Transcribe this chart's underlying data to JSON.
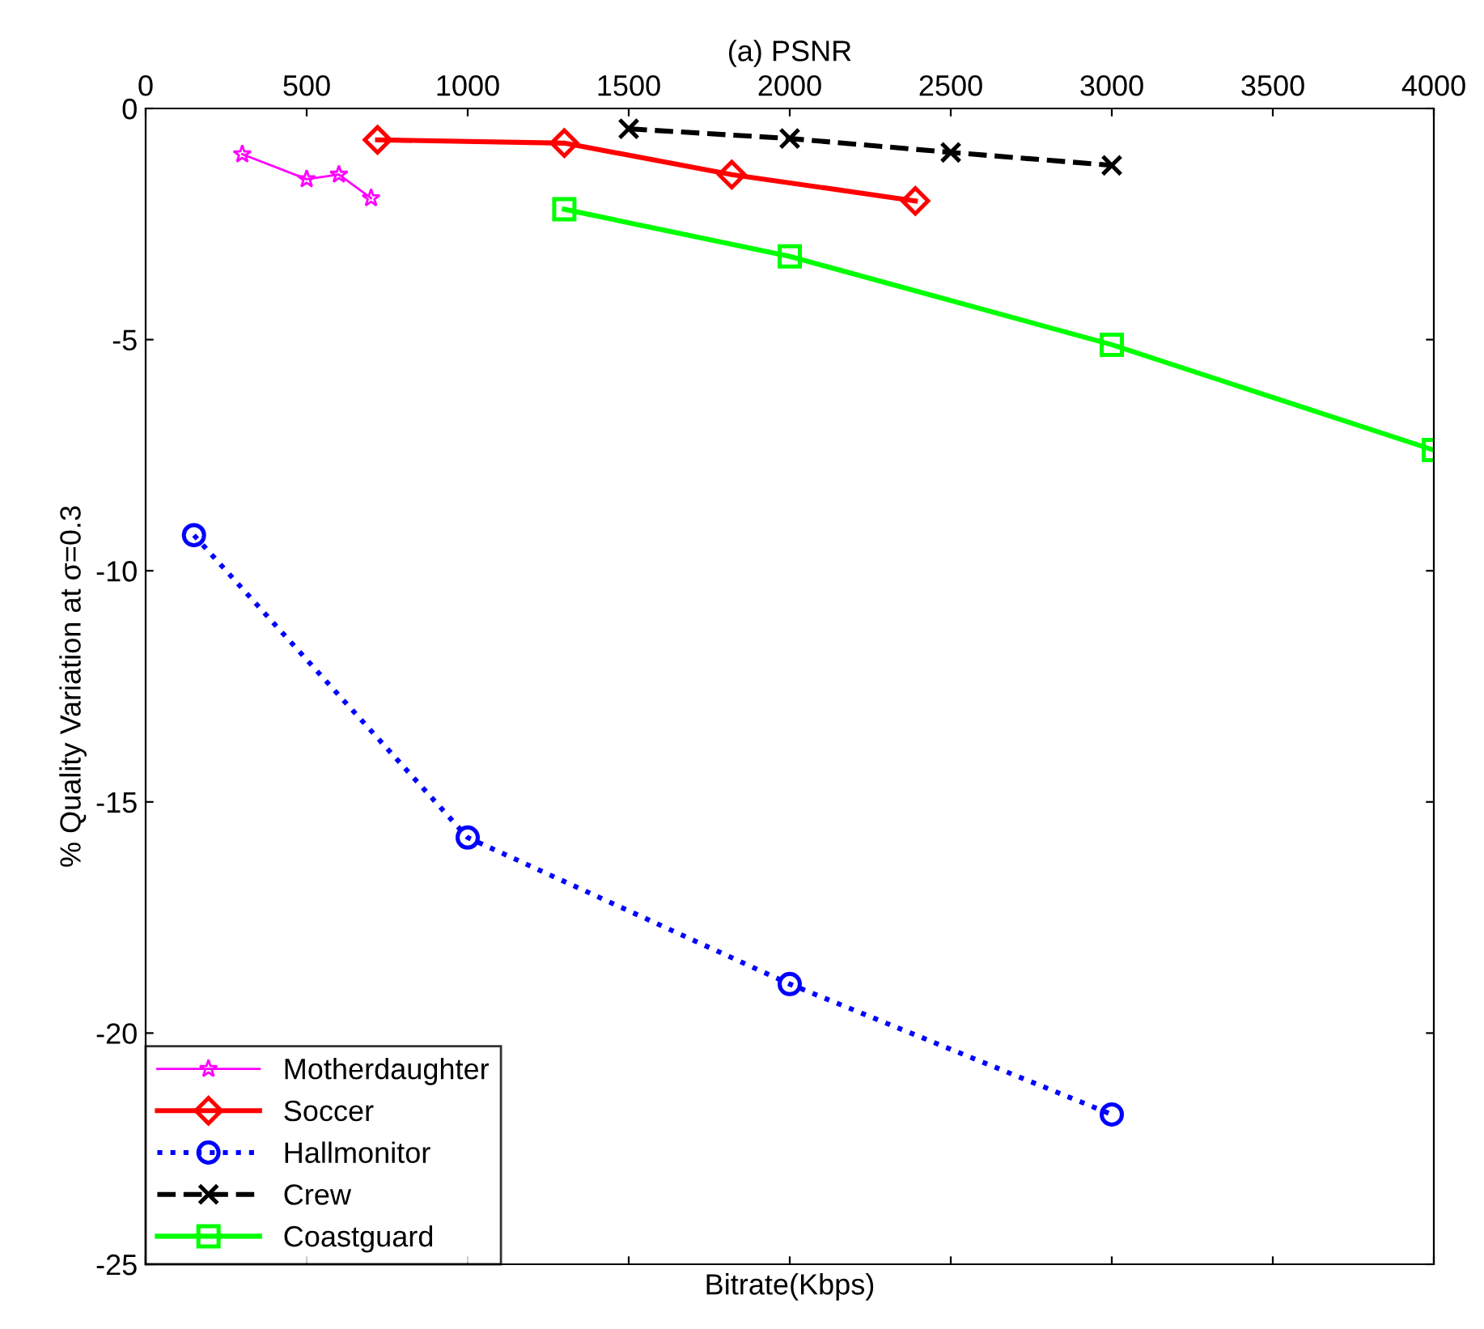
{
  "chart_data": {
    "type": "line",
    "title": "(a) PSNR",
    "xlabel": "Bitrate(Kbps)",
    "ylabel": "% Quality Variation at σ=0.3",
    "xlim": [
      0,
      4000
    ],
    "xticks": [
      0,
      500,
      1000,
      1500,
      2000,
      2500,
      3000,
      3500,
      4000
    ],
    "ylim": [
      -25,
      0
    ],
    "yticks": [
      -25,
      -20,
      -15,
      -10,
      -5,
      0
    ],
    "grid": false,
    "legend": "bottom left",
    "series": [
      {
        "name": "Motherdaughter",
        "color": "#ff00ff",
        "marker": "star",
        "line_style": "solid",
        "x": [
          300,
          500,
          600,
          700
        ],
        "values": [
          -0.99,
          -1.53,
          -1.43,
          -1.94
        ]
      },
      {
        "name": "Soccer",
        "color": "#ff0000",
        "marker": "diamond",
        "line_style": "solid",
        "x": [
          720,
          1300,
          1820,
          2390
        ],
        "values": [
          -0.68,
          -0.75,
          -1.43,
          -2.0
        ]
      },
      {
        "name": "Hallmonitor",
        "color": "#0000ff",
        "marker": "circle",
        "line_style": "dotted",
        "x": [
          150,
          1000,
          2000,
          3000
        ],
        "values": [
          -9.23,
          -15.77,
          -18.94,
          -21.76
        ]
      },
      {
        "name": "Crew",
        "color": "#000000",
        "marker": "cross",
        "line_style": "dashed",
        "x": [
          1500,
          2000,
          2500,
          3000
        ],
        "values": [
          -0.44,
          -0.65,
          -0.95,
          -1.23
        ]
      },
      {
        "name": "Coastguard",
        "color": "#00ff00",
        "marker": "square",
        "line_style": "solid",
        "x": [
          1300,
          2000,
          3000,
          4000
        ],
        "values": [
          -2.18,
          -3.2,
          -5.11,
          -7.39
        ]
      }
    ]
  }
}
